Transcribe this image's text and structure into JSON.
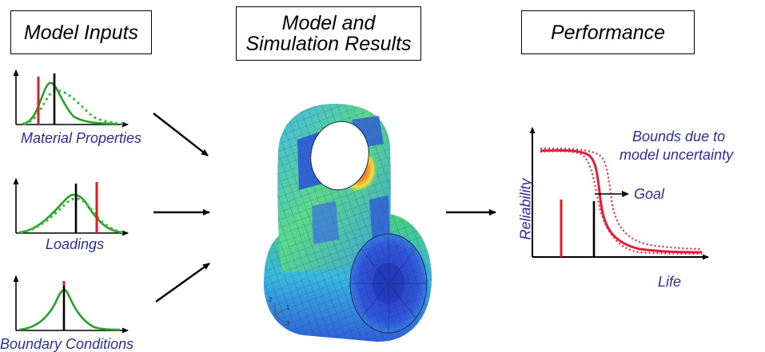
{
  "headers": {
    "inputs": "Model Inputs",
    "model_line1": "Model and",
    "model_line2": "Simulation Results",
    "performance": "Performance"
  },
  "inputs": {
    "material": "Material Properties",
    "loadings": "Loadings",
    "boundary": "Boundary Conditions"
  },
  "performance_plot": {
    "y_label": "Reliability",
    "x_label": "Life",
    "goal": "Goal",
    "bounds_line1": "Bounds due to",
    "bounds_line2": "model uncertainty"
  },
  "triad": {
    "axis2": "2",
    "axis1": "1",
    "axis3": "3"
  },
  "colors": {
    "green": "#2aa02a",
    "red": "#d8202a",
    "label_blue": "#2d2d9a",
    "fea_blue": "#2b3fd0",
    "fea_cyan": "#3cc8e0",
    "fea_green": "#5adc5a",
    "fea_yellow": "#f0e040",
    "fea_red": "#e02020"
  }
}
